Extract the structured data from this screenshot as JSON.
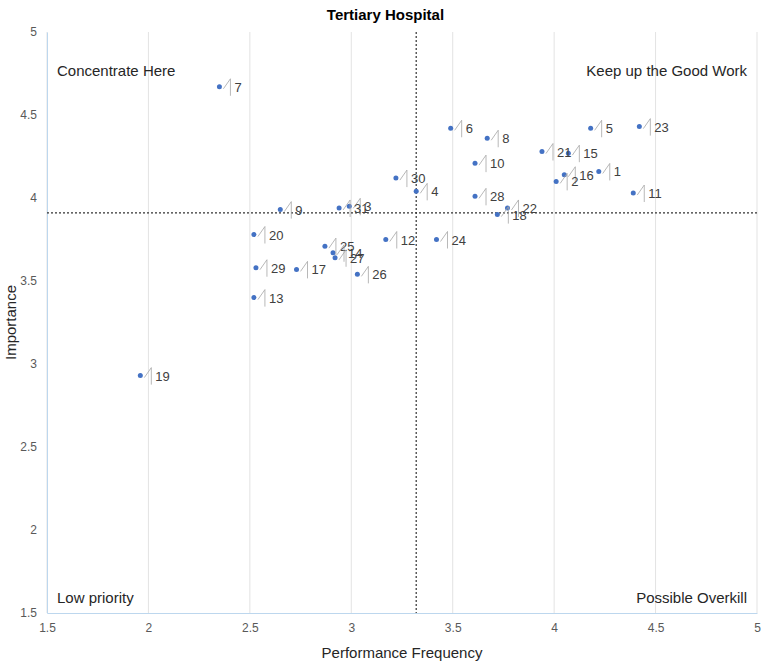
{
  "chart_data": {
    "type": "scatter",
    "title": "Tertiary Hospital",
    "x_label": "Performance Frequency",
    "y_label": "Importance",
    "labels": [
      "7",
      "6",
      "8",
      "5",
      "23",
      "21",
      "15",
      "10",
      "1",
      "16",
      "30",
      "2",
      "4",
      "28",
      "11",
      "22",
      "3",
      "31",
      "9",
      "18",
      "20",
      "12",
      "24",
      "25",
      "14",
      "27",
      "29",
      "17",
      "26",
      "13",
      "19"
    ],
    "x": [
      2.35,
      3.49,
      3.67,
      4.18,
      4.42,
      3.94,
      4.07,
      3.61,
      4.22,
      4.05,
      3.22,
      4.01,
      3.32,
      3.61,
      4.39,
      3.77,
      2.99,
      2.94,
      2.65,
      3.72,
      2.52,
      3.17,
      3.42,
      2.87,
      2.91,
      2.92,
      2.53,
      2.73,
      3.03,
      2.52,
      1.96
    ],
    "values": [
      4.67,
      4.42,
      4.36,
      4.42,
      4.43,
      4.28,
      4.27,
      4.21,
      4.16,
      4.14,
      4.12,
      4.1,
      4.04,
      4.01,
      4.03,
      3.94,
      3.95,
      3.94,
      3.93,
      3.9,
      3.78,
      3.75,
      3.75,
      3.71,
      3.67,
      3.64,
      3.58,
      3.57,
      3.54,
      3.4,
      2.93
    ],
    "color": "#4472c4",
    "marker": "circle",
    "xlim": [
      1.5,
      5
    ],
    "xticks": [
      1.5,
      2,
      2.5,
      3,
      3.5,
      4,
      4.5,
      5
    ],
    "ylim": [
      1.5,
      5
    ],
    "yticks": [
      1.5,
      2,
      2.5,
      3,
      3.5,
      4,
      4.5,
      5
    ],
    "grid": "x",
    "reference_lines": {
      "x": 3.32,
      "y": 3.91
    },
    "quadrant_labels": {
      "top_left": "Concentrate Here",
      "top_right": "Keep up the Good Work",
      "bottom_left": "Low priority",
      "bottom_right": "Possible Overkill"
    }
  }
}
